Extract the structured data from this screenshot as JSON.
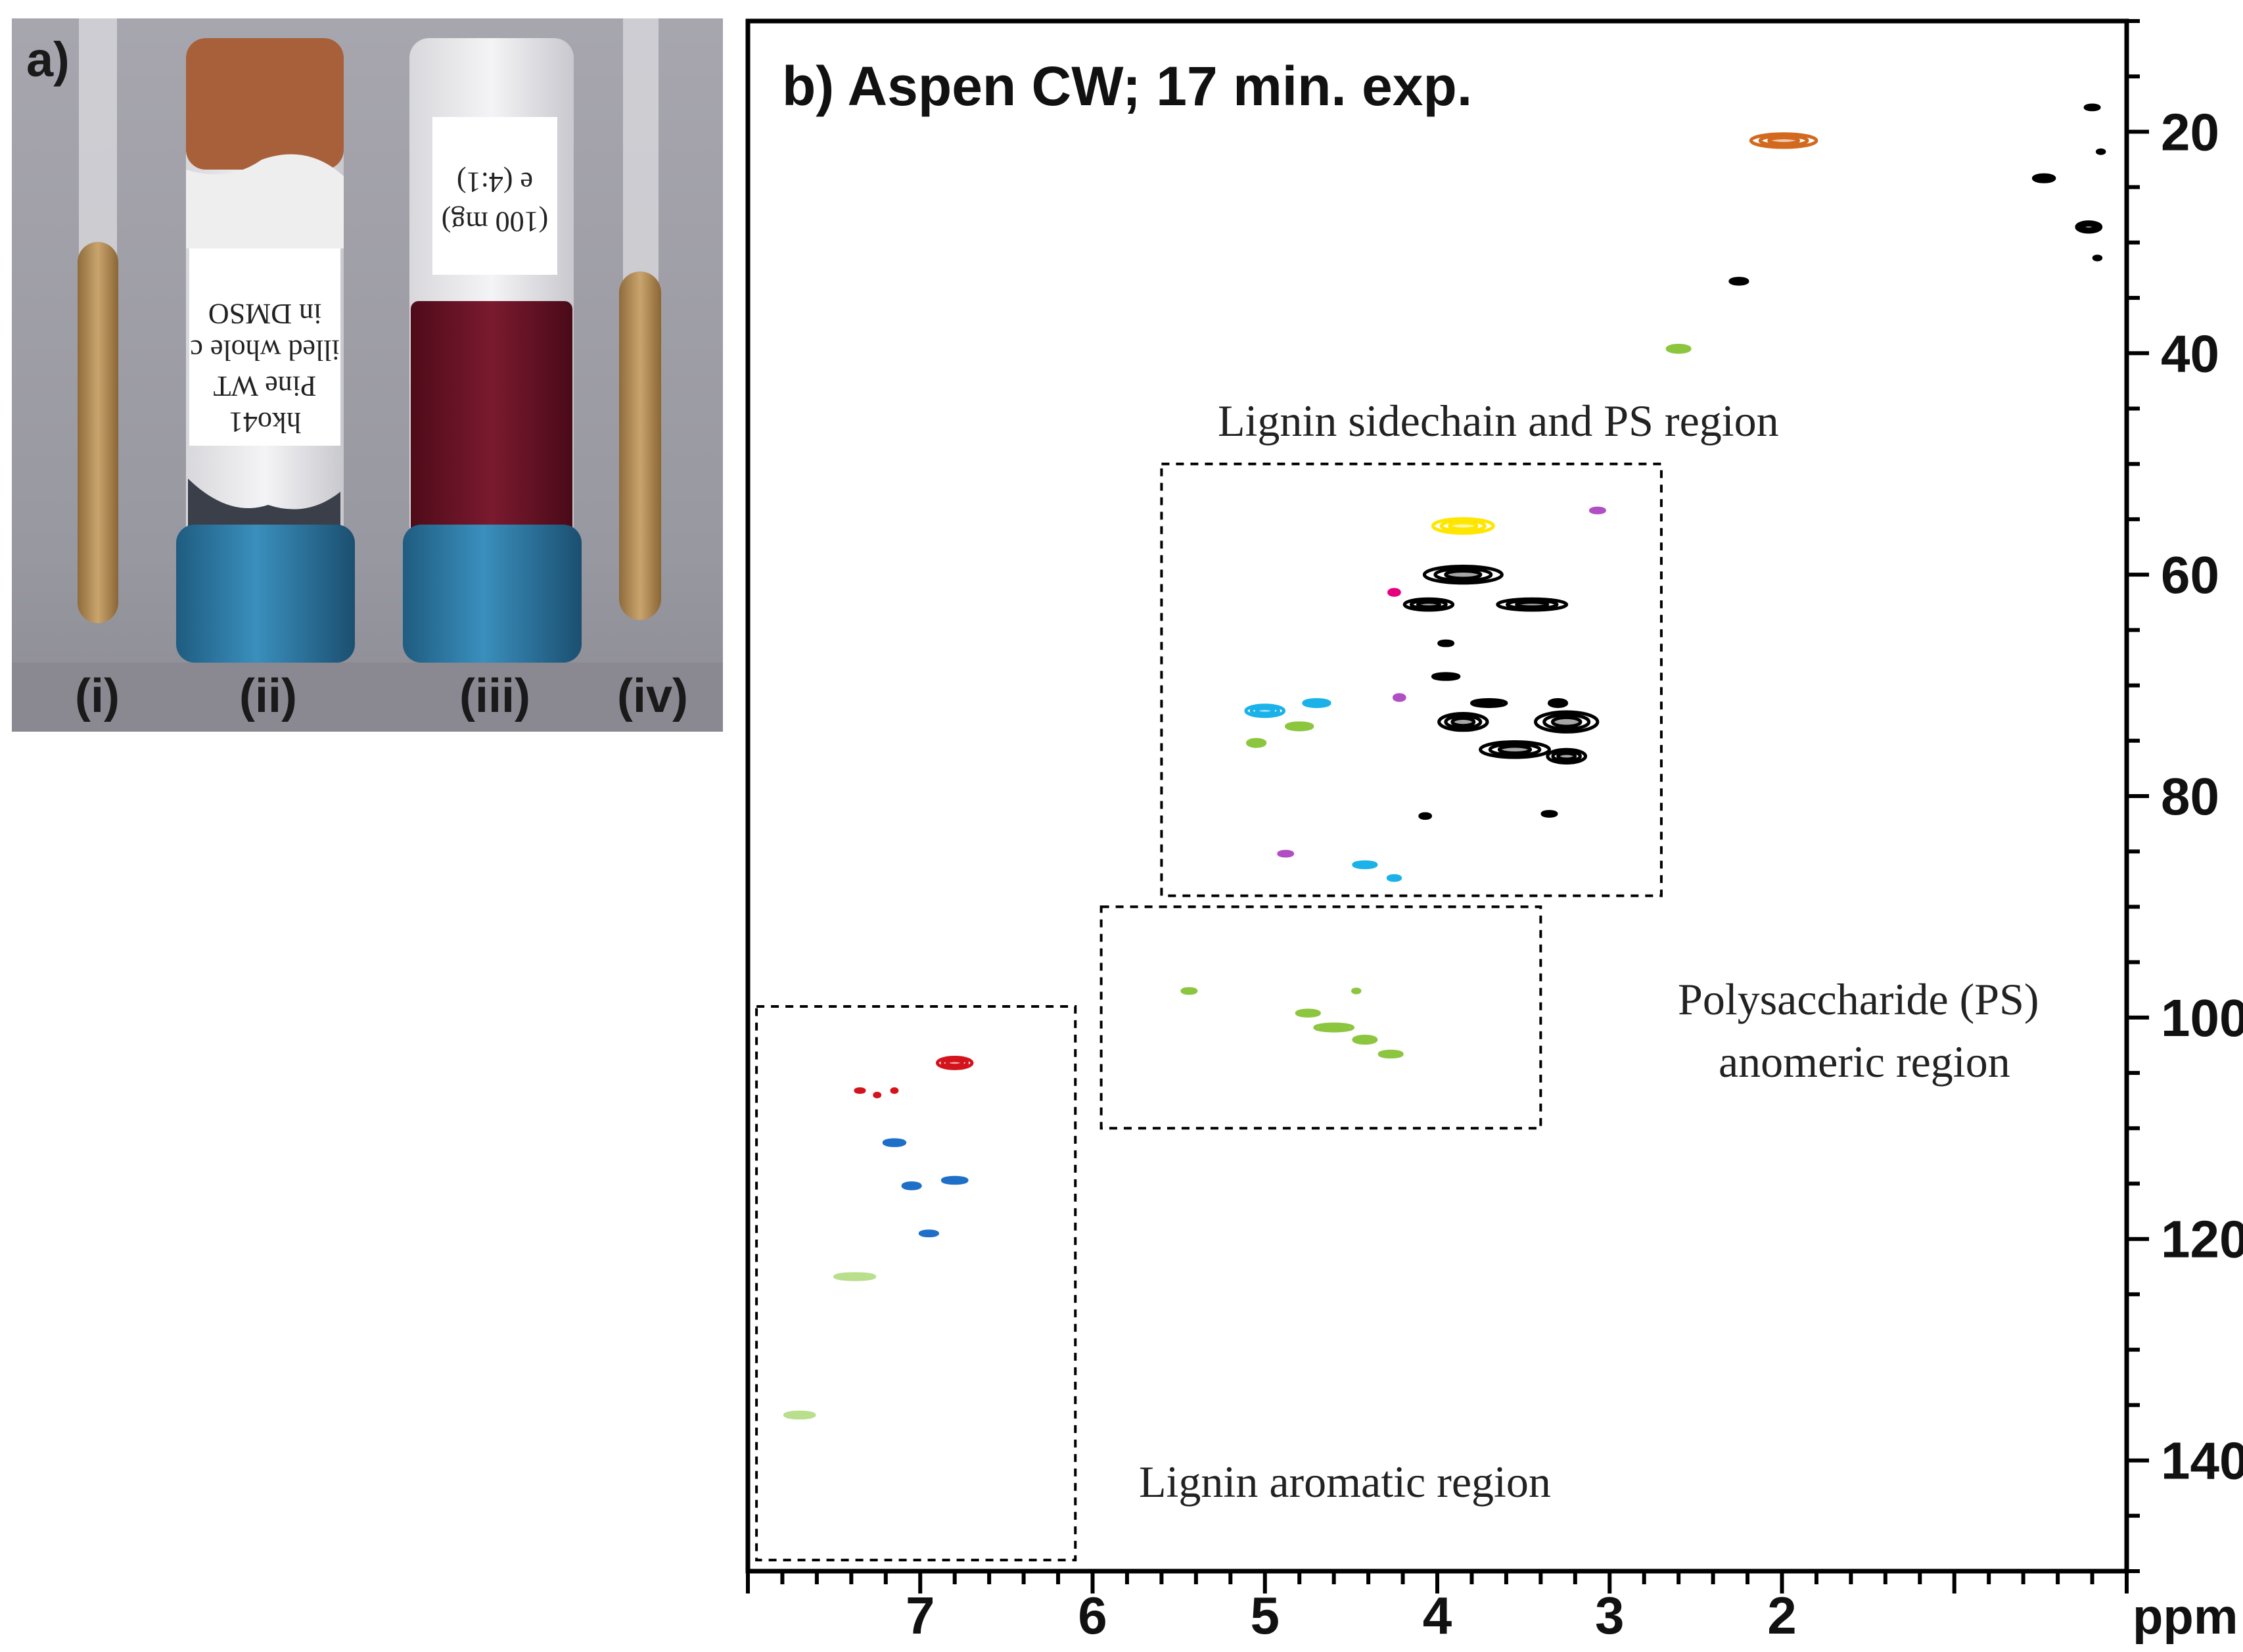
{
  "panel_a": {
    "label": "a)",
    "items": [
      {
        "label": "(i)",
        "kind": "tube"
      },
      {
        "label": "(ii)",
        "kind": "vial",
        "label_lines": [
          "hko41",
          "Pine WT",
          "illed whole c",
          "in DMSO"
        ]
      },
      {
        "label": "(iii)",
        "kind": "vial",
        "label_lines": [
          "(100 mg)",
          "e (4:1)"
        ]
      },
      {
        "label": "(iv)",
        "kind": "tube"
      }
    ],
    "colors": {
      "background": "#9b9aa3",
      "tube_liquid": "#b8925a",
      "cap": "#2f7fa8",
      "vial_ii_top": "#a8603a",
      "vial_iii_liquid": "#6e1226"
    }
  },
  "chart_data": {
    "type": "scatter",
    "subtype": "2D HSQC NMR contour plot",
    "title": "b) Aspen CW; 17 min. exp.",
    "xlabel": "ppm",
    "ylabel": "",
    "x_axis": {
      "label": "ppm",
      "reversed": true,
      "range": [
        8.0,
        0.0
      ],
      "ticks": [
        7,
        6,
        5,
        4,
        3,
        2
      ]
    },
    "y_axis": {
      "label": "",
      "reversed": true,
      "range": [
        10.0,
        150.0
      ],
      "ticks": [
        20,
        40,
        60,
        80,
        100,
        120,
        140
      ],
      "position": "right"
    },
    "grid": false,
    "regions": [
      {
        "name": "Lignin sidechain and PS region",
        "x": [
          2.7,
          5.6
        ],
        "y": [
          50,
          89
        ]
      },
      {
        "name": "Polysaccharide (PS) anomeric region",
        "x": [
          3.4,
          5.95
        ],
        "y": [
          90,
          110
        ]
      },
      {
        "name": "Lignin aromatic region",
        "x": [
          6.1,
          7.95
        ],
        "y": [
          99,
          149
        ]
      }
    ],
    "region_labels": {
      "sidechain": "Lignin sidechain and PS region",
      "anomeric_1": "Polysaccharide (PS)",
      "anomeric_2": "anomeric region",
      "aromatic": "Lignin aromatic region"
    },
    "peaks": [
      {
        "x": 1.99,
        "y": 20.8,
        "color": "#d2691e",
        "w": 0.38,
        "h": 1.2
      },
      {
        "x": 0.2,
        "y": 17.8,
        "color": "#000000",
        "w": 0.08,
        "h": 0.4
      },
      {
        "x": 0.15,
        "y": 21.8,
        "color": "#000000",
        "w": 0.04,
        "h": 0.3
      },
      {
        "x": 0.48,
        "y": 24.2,
        "color": "#000000",
        "w": 0.12,
        "h": 0.6
      },
      {
        "x": 0.22,
        "y": 28.6,
        "color": "#000000",
        "w": 0.14,
        "h": 0.9
      },
      {
        "x": 0.17,
        "y": 31.4,
        "color": "#000000",
        "w": 0.04,
        "h": 0.3
      },
      {
        "x": 2.25,
        "y": 33.5,
        "color": "#000000",
        "w": 0.1,
        "h": 0.5
      },
      {
        "x": 2.6,
        "y": 39.6,
        "color": "#8cc63f",
        "w": 0.13,
        "h": 0.6
      },
      {
        "x": 3.85,
        "y": 55.6,
        "color": "#ffe600",
        "w": 0.35,
        "h": 1.3
      },
      {
        "x": 3.07,
        "y": 54.2,
        "color": "#b04fc4",
        "w": 0.08,
        "h": 0.4
      },
      {
        "x": 3.85,
        "y": 60.0,
        "color": "#000000",
        "w": 0.45,
        "h": 1.5
      },
      {
        "x": 3.45,
        "y": 62.7,
        "color": "#000000",
        "w": 0.4,
        "h": 1.0
      },
      {
        "x": 4.05,
        "y": 62.7,
        "color": "#000000",
        "w": 0.28,
        "h": 1.0
      },
      {
        "x": 4.25,
        "y": 61.6,
        "color": "#e6007e",
        "w": 0.06,
        "h": 0.5
      },
      {
        "x": 3.95,
        "y": 66.2,
        "color": "#000000",
        "w": 0.08,
        "h": 0.4
      },
      {
        "x": 3.95,
        "y": 69.2,
        "color": "#000000",
        "w": 0.15,
        "h": 0.5
      },
      {
        "x": 4.22,
        "y": 71.1,
        "color": "#b04fc4",
        "w": 0.06,
        "h": 0.5
      },
      {
        "x": 3.7,
        "y": 71.6,
        "color": "#000000",
        "w": 0.2,
        "h": 0.6
      },
      {
        "x": 3.3,
        "y": 71.6,
        "color": "#000000",
        "w": 0.1,
        "h": 0.6
      },
      {
        "x": 3.25,
        "y": 73.3,
        "color": "#000000",
        "w": 0.36,
        "h": 1.8
      },
      {
        "x": 3.85,
        "y": 73.3,
        "color": "#000000",
        "w": 0.28,
        "h": 1.5
      },
      {
        "x": 3.55,
        "y": 75.8,
        "color": "#000000",
        "w": 0.4,
        "h": 1.4
      },
      {
        "x": 3.25,
        "y": 76.4,
        "color": "#000000",
        "w": 0.22,
        "h": 1.2
      },
      {
        "x": 5.0,
        "y": 72.3,
        "color": "#1ab2e8",
        "w": 0.22,
        "h": 1.0
      },
      {
        "x": 4.7,
        "y": 71.6,
        "color": "#1ab2e8",
        "w": 0.15,
        "h": 0.6
      },
      {
        "x": 4.8,
        "y": 73.7,
        "color": "#8cc63f",
        "w": 0.15,
        "h": 0.6
      },
      {
        "x": 5.05,
        "y": 75.2,
        "color": "#8cc63f",
        "w": 0.1,
        "h": 0.6
      },
      {
        "x": 4.07,
        "y": 81.8,
        "color": "#000000",
        "w": 0.06,
        "h": 0.4
      },
      {
        "x": 3.35,
        "y": 81.6,
        "color": "#000000",
        "w": 0.08,
        "h": 0.4
      },
      {
        "x": 4.88,
        "y": 85.2,
        "color": "#b04fc4",
        "w": 0.08,
        "h": 0.4
      },
      {
        "x": 4.42,
        "y": 86.2,
        "color": "#1ab2e8",
        "w": 0.13,
        "h": 0.5
      },
      {
        "x": 4.25,
        "y": 87.4,
        "color": "#1ab2e8",
        "w": 0.07,
        "h": 0.4
      },
      {
        "x": 5.44,
        "y": 97.6,
        "color": "#8cc63f",
        "w": 0.08,
        "h": 0.4
      },
      {
        "x": 4.47,
        "y": 97.6,
        "color": "#8cc63f",
        "w": 0.04,
        "h": 0.3
      },
      {
        "x": 4.75,
        "y": 99.6,
        "color": "#8cc63f",
        "w": 0.13,
        "h": 0.5
      },
      {
        "x": 4.6,
        "y": 100.9,
        "color": "#8cc63f",
        "w": 0.22,
        "h": 0.6
      },
      {
        "x": 4.42,
        "y": 102.0,
        "color": "#8cc63f",
        "w": 0.13,
        "h": 0.6
      },
      {
        "x": 4.27,
        "y": 103.3,
        "color": "#8cc63f",
        "w": 0.13,
        "h": 0.5
      },
      {
        "x": 6.8,
        "y": 104.1,
        "color": "#d4141c",
        "w": 0.2,
        "h": 1.0
      },
      {
        "x": 7.35,
        "y": 106.6,
        "color": "#d4141c",
        "w": 0.05,
        "h": 0.3
      },
      {
        "x": 7.25,
        "y": 107.0,
        "color": "#d4141c",
        "w": 0.03,
        "h": 0.3
      },
      {
        "x": 7.15,
        "y": 106.6,
        "color": "#d4141c",
        "w": 0.03,
        "h": 0.3
      },
      {
        "x": 7.15,
        "y": 111.3,
        "color": "#1e6fc7",
        "w": 0.12,
        "h": 0.5
      },
      {
        "x": 7.05,
        "y": 115.2,
        "color": "#1e6fc7",
        "w": 0.1,
        "h": 0.5
      },
      {
        "x": 6.8,
        "y": 114.7,
        "color": "#1e6fc7",
        "w": 0.14,
        "h": 0.5
      },
      {
        "x": 6.95,
        "y": 119.5,
        "color": "#1e6fc7",
        "w": 0.1,
        "h": 0.4
      },
      {
        "x": 7.38,
        "y": 123.4,
        "color": "#b9de8c",
        "w": 0.23,
        "h": 0.5
      },
      {
        "x": 7.7,
        "y": 135.9,
        "color": "#b9de8c",
        "w": 0.17,
        "h": 0.5
      }
    ]
  }
}
